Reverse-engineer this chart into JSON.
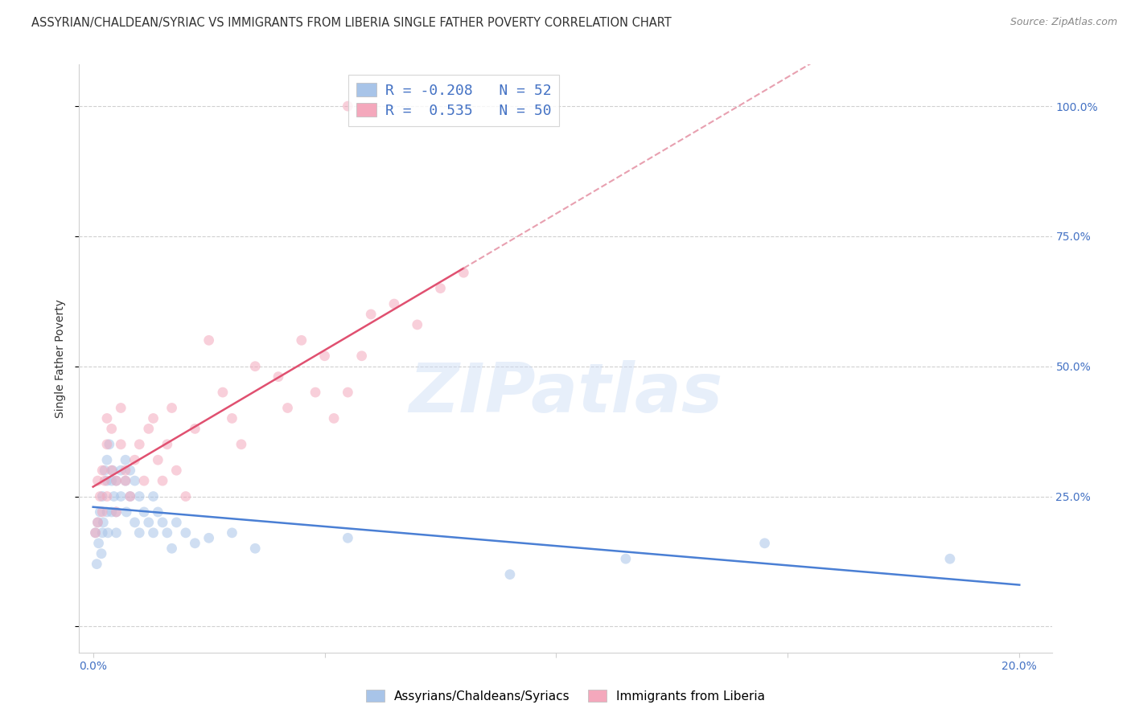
{
  "title": "ASSYRIAN/CHALDEAN/SYRIAC VS IMMIGRANTS FROM LIBERIA SINGLE FATHER POVERTY CORRELATION CHART",
  "source": "Source: ZipAtlas.com",
  "ylabel": "Single Father Poverty",
  "R1": -0.208,
  "N1": 52,
  "R2": 0.535,
  "N2": 50,
  "color_blue": "#a8c4e8",
  "color_pink": "#f4a8bc",
  "line_color_blue": "#4a7fd4",
  "line_color_pink": "#e05070",
  "line_color_pink_dash": "#e8a0b0",
  "legend1_label": "Assyrians/Chaldeans/Syriacs",
  "legend2_label": "Immigrants from Liberia",
  "scatter_alpha": 0.55,
  "scatter_size": 85,
  "blue_x": [
    0.0005,
    0.0008,
    0.001,
    0.0012,
    0.0015,
    0.0018,
    0.002,
    0.002,
    0.0022,
    0.0025,
    0.003,
    0.003,
    0.003,
    0.0032,
    0.0035,
    0.004,
    0.004,
    0.0042,
    0.0045,
    0.005,
    0.005,
    0.005,
    0.006,
    0.006,
    0.007,
    0.007,
    0.0072,
    0.008,
    0.008,
    0.009,
    0.009,
    0.01,
    0.01,
    0.011,
    0.012,
    0.013,
    0.013,
    0.014,
    0.015,
    0.016,
    0.017,
    0.018,
    0.02,
    0.022,
    0.025,
    0.03,
    0.035,
    0.055,
    0.09,
    0.115,
    0.145,
    0.185
  ],
  "blue_y": [
    0.18,
    0.12,
    0.2,
    0.16,
    0.22,
    0.14,
    0.25,
    0.18,
    0.2,
    0.3,
    0.28,
    0.22,
    0.32,
    0.18,
    0.35,
    0.28,
    0.22,
    0.3,
    0.25,
    0.28,
    0.22,
    0.18,
    0.3,
    0.25,
    0.32,
    0.28,
    0.22,
    0.3,
    0.25,
    0.28,
    0.2,
    0.25,
    0.18,
    0.22,
    0.2,
    0.25,
    0.18,
    0.22,
    0.2,
    0.18,
    0.15,
    0.2,
    0.18,
    0.16,
    0.17,
    0.18,
    0.15,
    0.17,
    0.1,
    0.13,
    0.16,
    0.13
  ],
  "pink_x": [
    0.0005,
    0.001,
    0.001,
    0.0015,
    0.002,
    0.002,
    0.0025,
    0.003,
    0.003,
    0.003,
    0.004,
    0.004,
    0.005,
    0.005,
    0.006,
    0.006,
    0.007,
    0.007,
    0.008,
    0.009,
    0.01,
    0.011,
    0.012,
    0.013,
    0.014,
    0.015,
    0.016,
    0.017,
    0.018,
    0.02,
    0.022,
    0.025,
    0.028,
    0.03,
    0.032,
    0.035,
    0.04,
    0.042,
    0.045,
    0.048,
    0.05,
    0.052,
    0.055,
    0.058,
    0.06,
    0.065,
    0.07,
    0.075,
    0.08,
    0.055
  ],
  "pink_y": [
    0.18,
    0.2,
    0.28,
    0.25,
    0.22,
    0.3,
    0.28,
    0.25,
    0.35,
    0.4,
    0.3,
    0.38,
    0.28,
    0.22,
    0.35,
    0.42,
    0.3,
    0.28,
    0.25,
    0.32,
    0.35,
    0.28,
    0.38,
    0.4,
    0.32,
    0.28,
    0.35,
    0.42,
    0.3,
    0.25,
    0.38,
    0.55,
    0.45,
    0.4,
    0.35,
    0.5,
    0.48,
    0.42,
    0.55,
    0.45,
    0.52,
    0.4,
    0.45,
    0.52,
    0.6,
    0.62,
    0.58,
    0.65,
    0.68,
    1.0
  ],
  "xlim": [
    -0.003,
    0.207
  ],
  "ylim": [
    -0.05,
    1.08
  ],
  "x_tick_pos": [
    0.0,
    0.05,
    0.1,
    0.15,
    0.2
  ],
  "x_tick_labels": [
    "0.0%",
    "",
    "",
    "",
    "20.0%"
  ],
  "y_tick_pos": [
    0.0,
    0.25,
    0.5,
    0.75,
    1.0
  ],
  "y_tick_labels_right": [
    "",
    "25.0%",
    "50.0%",
    "75.0%",
    "100.0%"
  ],
  "background_color": "#ffffff",
  "grid_color": "#d0d0d0",
  "watermark": "ZIPatlas",
  "tick_color": "#4472c4",
  "text_color": "#333333",
  "title_fontsize": 10.5,
  "axis_label_fontsize": 10,
  "legend_fontsize": 13,
  "source_fontsize": 9
}
